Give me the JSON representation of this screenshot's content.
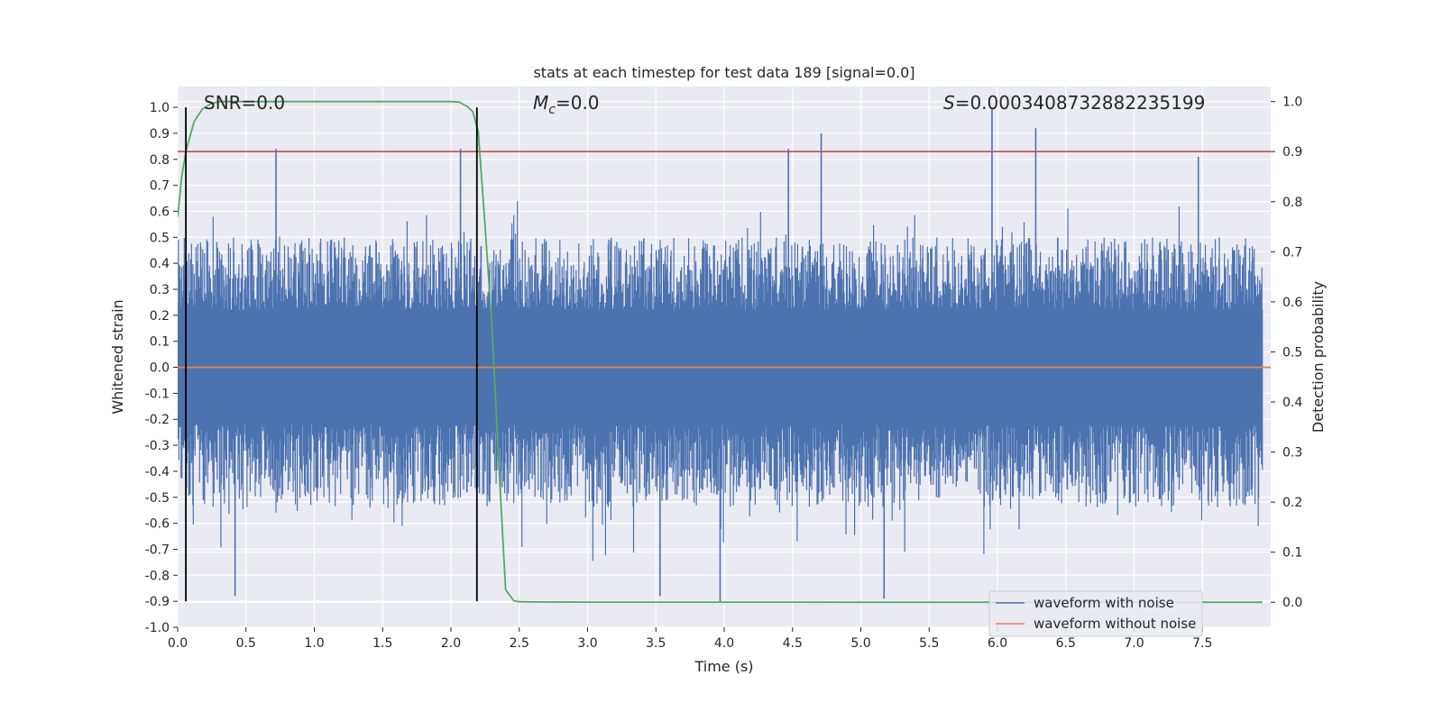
{
  "chart_data": {
    "type": "line",
    "title": "stats at each timestep for test data 189 [signal=0.0]",
    "xlabel": "Time (s)",
    "ylabel_left": "Whitened strain",
    "ylabel_right": "Detection probability",
    "xlim": [
      0.0,
      8.0
    ],
    "ylim_left": [
      -1.0,
      1.08
    ],
    "ylim_right": [
      -0.05,
      1.03
    ],
    "x_ticks": [
      "0.0",
      "0.5",
      "1.0",
      "1.5",
      "2.0",
      "2.5",
      "3.0",
      "3.5",
      "4.0",
      "4.5",
      "5.0",
      "5.5",
      "6.0",
      "6.5",
      "7.0",
      "7.5"
    ],
    "y_left_ticks": [
      "1.0",
      "0.9",
      "0.8",
      "0.7",
      "0.6",
      "0.5",
      "0.4",
      "0.3",
      "0.2",
      "0.1",
      "0.0",
      "-0.1",
      "-0.2",
      "-0.3",
      "-0.4",
      "-0.5",
      "-0.6",
      "-0.7",
      "-0.8",
      "-0.9",
      "-1.0"
    ],
    "y_right_ticks": [
      "1.0",
      "0.9",
      "0.8",
      "0.7",
      "0.6",
      "0.5",
      "0.4",
      "0.3",
      "0.2",
      "0.1",
      "0.0"
    ],
    "annotations": {
      "snr": "SNR=0.0",
      "mc_symbol": "M",
      "mc_sub": "c",
      "mc_value": "=0.0",
      "s_symbol": "S",
      "s_value": "=0.0003408732882235199"
    },
    "vertical_lines_x": [
      0.06,
      2.19
    ],
    "threshold_right": 0.9,
    "grid": true,
    "legend_position": "lower-right",
    "series": [
      {
        "name": "waveform with noise",
        "color": "#4c72b0",
        "axis": "left",
        "envelope_peaks": [
          {
            "x": 0.72,
            "y": 0.84
          },
          {
            "x": 2.07,
            "y": 0.84
          },
          {
            "x": 4.47,
            "y": 0.84
          },
          {
            "x": 4.71,
            "y": 0.9
          },
          {
            "x": 5.96,
            "y": 1.0
          },
          {
            "x": 6.28,
            "y": 0.92
          },
          {
            "x": 7.47,
            "y": 0.81
          },
          {
            "x": 0.42,
            "y": -0.88
          },
          {
            "x": 3.97,
            "y": -0.9
          },
          {
            "x": 5.17,
            "y": -0.89
          },
          {
            "x": 3.53,
            "y": -0.88
          }
        ]
      },
      {
        "name": "waveform without noise",
        "color": "#dd8452",
        "axis": "left",
        "x": [
          0.0,
          8.0
        ],
        "y": [
          0.0,
          0.0
        ]
      },
      {
        "color": "#55a868",
        "axis": "right",
        "x": [
          0.0,
          0.03,
          0.06,
          0.09,
          0.12,
          0.18,
          0.24,
          0.3,
          0.6,
          1.0,
          1.5,
          2.0,
          2.06,
          2.12,
          2.16,
          2.2,
          2.25,
          2.3,
          2.35,
          2.4,
          2.46,
          2.5,
          2.6,
          3.0,
          4.0,
          5.0,
          6.0,
          7.0,
          7.94
        ],
        "y": [
          0.77,
          0.85,
          0.9,
          0.93,
          0.96,
          0.985,
          0.995,
          1.0,
          1.0,
          1.0,
          1.0,
          1.0,
          0.999,
          0.99,
          0.98,
          0.94,
          0.75,
          0.55,
          0.28,
          0.025,
          0.003,
          0.001,
          0.0005,
          0.0003,
          0.0002,
          0.0001,
          0.0001,
          0.0001,
          0.0001
        ]
      },
      {
        "color": "#c44e52",
        "axis": "right",
        "x": [
          0.0,
          8.0
        ],
        "y": [
          0.9,
          0.9
        ]
      }
    ]
  }
}
